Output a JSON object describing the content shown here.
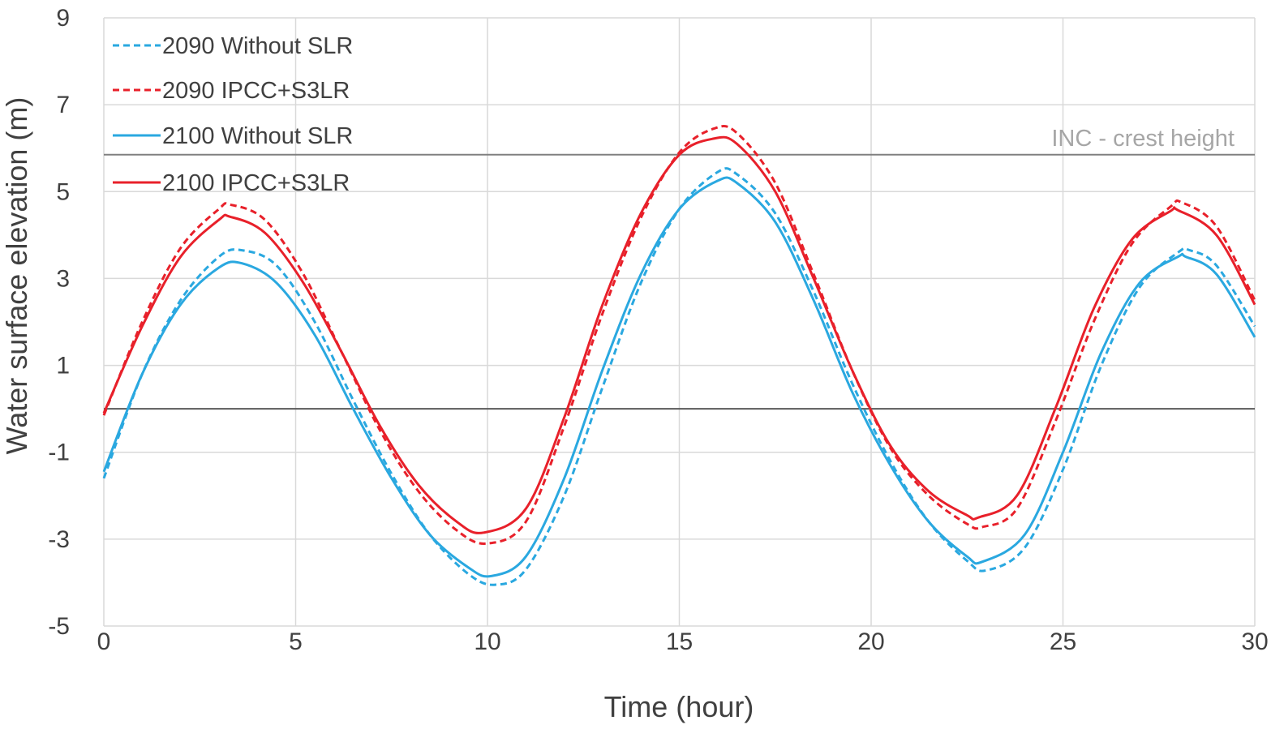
{
  "chart_data": {
    "type": "line",
    "title": "",
    "xlabel": "Time (hour)",
    "ylabel": "Water surface elevation (m)",
    "xlim": [
      0,
      30
    ],
    "ylim": [
      -5,
      9
    ],
    "xticks": [
      0,
      5,
      10,
      15,
      20,
      25,
      30
    ],
    "yticks": [
      -5,
      -3,
      -1,
      1,
      3,
      5,
      7,
      9
    ],
    "grid": true,
    "legend_position": "top-left",
    "reference_lines": [
      {
        "name": "INC - crest height",
        "y": 5.85,
        "color": "#808080",
        "label": "INC - crest height"
      },
      {
        "name": "zero",
        "y": 0,
        "color": "#595959",
        "label": ""
      }
    ],
    "series": [
      {
        "name": "2090 Without SLR",
        "color": "#2aa8e0",
        "dash": "dashed",
        "points": [
          [
            0,
            -1.6
          ],
          [
            1,
            0.8
          ],
          [
            2,
            2.5
          ],
          [
            3,
            3.5
          ],
          [
            3.6,
            3.65
          ],
          [
            4.5,
            3.3
          ],
          [
            5.5,
            2.0
          ],
          [
            6.5,
            0.2
          ],
          [
            7.5,
            -1.5
          ],
          [
            8.5,
            -2.9
          ],
          [
            9.5,
            -3.8
          ],
          [
            10.2,
            -4.05
          ],
          [
            11,
            -3.7
          ],
          [
            12,
            -2.0
          ],
          [
            13,
            0.5
          ],
          [
            14,
            2.9
          ],
          [
            15,
            4.6
          ],
          [
            16,
            5.45
          ],
          [
            16.5,
            5.4
          ],
          [
            17.5,
            4.5
          ],
          [
            18.5,
            2.7
          ],
          [
            19.5,
            0.6
          ],
          [
            20.5,
            -1.2
          ],
          [
            21.5,
            -2.6
          ],
          [
            22.5,
            -3.5
          ],
          [
            23,
            -3.72
          ],
          [
            24,
            -3.2
          ],
          [
            25,
            -1.4
          ],
          [
            26,
            1.0
          ],
          [
            27,
            2.8
          ],
          [
            28,
            3.6
          ],
          [
            28.3,
            3.65
          ],
          [
            29,
            3.3
          ],
          [
            30,
            1.9
          ]
        ]
      },
      {
        "name": "2090 IPCC+S3LR",
        "color": "#e8202a",
        "dash": "dashed",
        "points": [
          [
            0,
            -0.15
          ],
          [
            1,
            2.0
          ],
          [
            2,
            3.7
          ],
          [
            3,
            4.6
          ],
          [
            3.3,
            4.7
          ],
          [
            4.2,
            4.35
          ],
          [
            5.2,
            3.1
          ],
          [
            6.2,
            1.3
          ],
          [
            7.2,
            -0.5
          ],
          [
            8.2,
            -1.9
          ],
          [
            9.2,
            -2.8
          ],
          [
            10,
            -3.1
          ],
          [
            11,
            -2.6
          ],
          [
            12,
            -0.4
          ],
          [
            13,
            2.2
          ],
          [
            14,
            4.4
          ],
          [
            15,
            5.9
          ],
          [
            15.9,
            6.45
          ],
          [
            16.5,
            6.35
          ],
          [
            17.5,
            5.2
          ],
          [
            18.5,
            3.1
          ],
          [
            19.5,
            0.9
          ],
          [
            20.5,
            -0.9
          ],
          [
            21.5,
            -2.0
          ],
          [
            22.5,
            -2.65
          ],
          [
            22.9,
            -2.72
          ],
          [
            23.8,
            -2.3
          ],
          [
            24.8,
            -0.3
          ],
          [
            25.8,
            2.0
          ],
          [
            26.8,
            3.8
          ],
          [
            27.8,
            4.65
          ],
          [
            28.1,
            4.75
          ],
          [
            29,
            4.2
          ],
          [
            30,
            2.5
          ]
        ]
      },
      {
        "name": "2100 Without SLR",
        "color": "#2aa8e0",
        "dash": "solid",
        "points": [
          [
            0,
            -1.45
          ],
          [
            1,
            0.8
          ],
          [
            2,
            2.4
          ],
          [
            3,
            3.25
          ],
          [
            3.6,
            3.35
          ],
          [
            4.5,
            2.9
          ],
          [
            5.5,
            1.7
          ],
          [
            6.5,
            0.0
          ],
          [
            7.5,
            -1.6
          ],
          [
            8.5,
            -2.9
          ],
          [
            9.5,
            -3.65
          ],
          [
            10.1,
            -3.85
          ],
          [
            11,
            -3.4
          ],
          [
            12,
            -1.6
          ],
          [
            13,
            0.9
          ],
          [
            14,
            3.1
          ],
          [
            15,
            4.6
          ],
          [
            16,
            5.25
          ],
          [
            16.5,
            5.2
          ],
          [
            17.5,
            4.3
          ],
          [
            18.5,
            2.5
          ],
          [
            19.5,
            0.4
          ],
          [
            20.5,
            -1.3
          ],
          [
            21.5,
            -2.6
          ],
          [
            22.5,
            -3.4
          ],
          [
            22.9,
            -3.52
          ],
          [
            24,
            -2.9
          ],
          [
            25,
            -1.0
          ],
          [
            26,
            1.3
          ],
          [
            27,
            2.9
          ],
          [
            28,
            3.5
          ],
          [
            28.2,
            3.5
          ],
          [
            29,
            3.1
          ],
          [
            30,
            1.65
          ]
        ]
      },
      {
        "name": "2100 IPCC+S3LR",
        "color": "#e8202a",
        "dash": "solid",
        "points": [
          [
            0,
            -0.1
          ],
          [
            1,
            1.9
          ],
          [
            2,
            3.5
          ],
          [
            3,
            4.35
          ],
          [
            3.3,
            4.42
          ],
          [
            4.2,
            4.05
          ],
          [
            5.2,
            2.9
          ],
          [
            6.2,
            1.3
          ],
          [
            7.2,
            -0.4
          ],
          [
            8.2,
            -1.75
          ],
          [
            9.2,
            -2.6
          ],
          [
            9.9,
            -2.85
          ],
          [
            11,
            -2.3
          ],
          [
            12,
            -0.2
          ],
          [
            13,
            2.4
          ],
          [
            14,
            4.5
          ],
          [
            15,
            5.85
          ],
          [
            15.9,
            6.22
          ],
          [
            16.5,
            6.1
          ],
          [
            17.5,
            5.0
          ],
          [
            18.5,
            3.0
          ],
          [
            19.5,
            0.9
          ],
          [
            20.5,
            -0.85
          ],
          [
            21.5,
            -1.9
          ],
          [
            22.5,
            -2.45
          ],
          [
            22.8,
            -2.5
          ],
          [
            23.8,
            -2.0
          ],
          [
            24.8,
            0.0
          ],
          [
            25.8,
            2.3
          ],
          [
            26.8,
            3.9
          ],
          [
            27.8,
            4.55
          ],
          [
            28,
            4.57
          ],
          [
            29,
            4.0
          ],
          [
            30,
            2.4
          ]
        ]
      }
    ]
  }
}
